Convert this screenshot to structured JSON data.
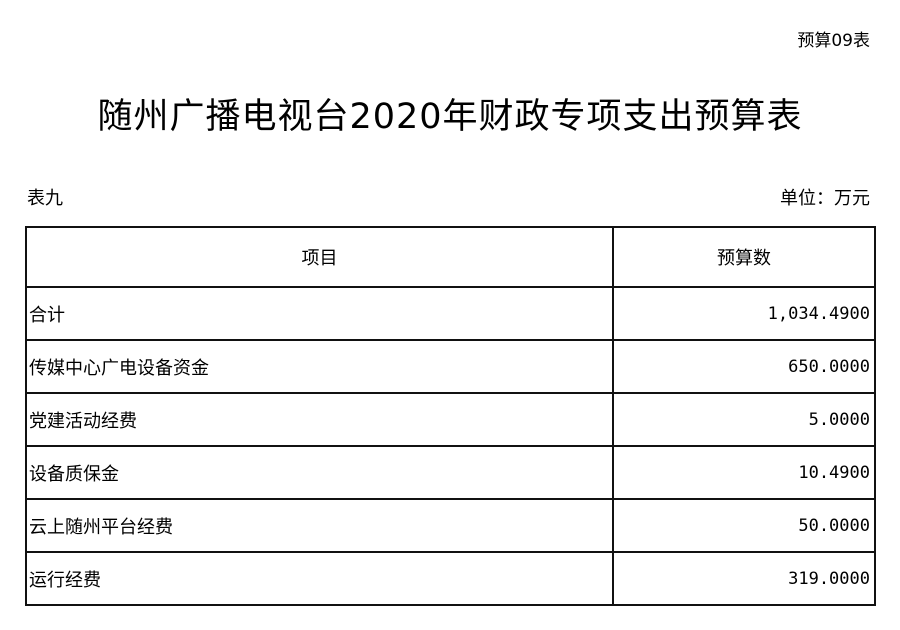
{
  "header": {
    "code": "预算09表",
    "title": "随州广播电视台2020年财政专项支出预算表",
    "table_no": "表九",
    "unit": "单位：万元"
  },
  "table": {
    "columns": [
      "项目",
      "预算数"
    ],
    "rows": [
      {
        "name": "合计",
        "value": "1,034.4900"
      },
      {
        "name": "传媒中心广电设备资金",
        "value": "650.0000"
      },
      {
        "name": "党建活动经费",
        "value": "5.0000"
      },
      {
        "name": "设备质保金",
        "value": "10.4900"
      },
      {
        "name": "云上随州平台经费",
        "value": "50.0000"
      },
      {
        "name": "运行经费",
        "value": "319.0000"
      }
    ]
  }
}
